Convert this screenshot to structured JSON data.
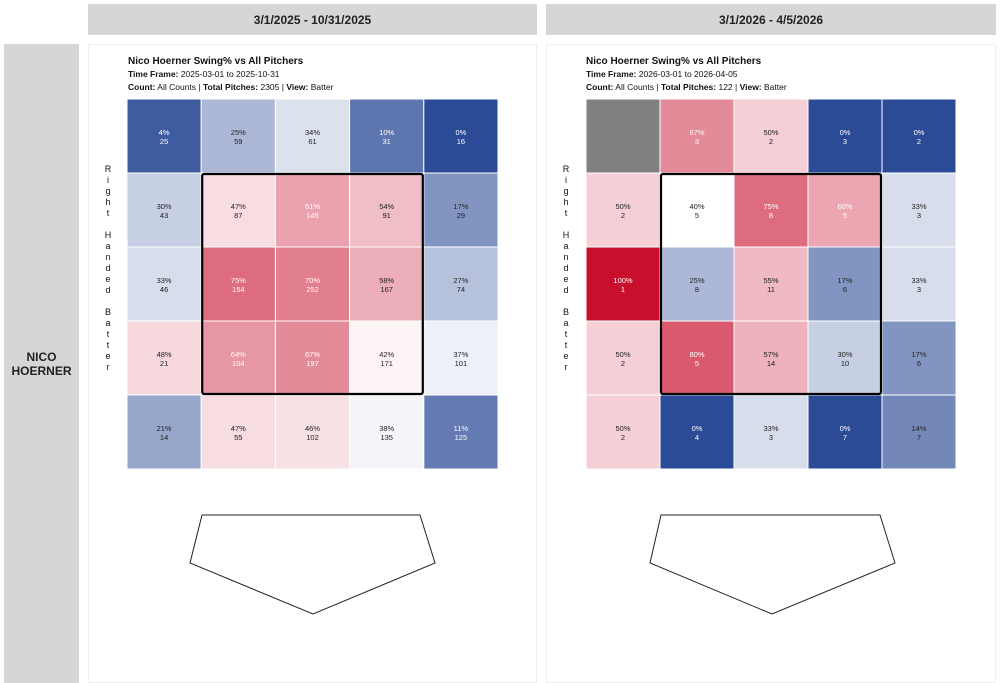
{
  "row_label": "NICO\nHOERNER",
  "panels": [
    {
      "header": "3/1/2025 - 10/31/2025",
      "title": "Nico Hoerner Swing% vs All Pitchers",
      "timeframe_label": "Time Frame:",
      "timeframe_value": "2025-03-01 to 2025-10-31",
      "count_label": "Count:",
      "count_value": "All Counts",
      "total_label": "Total Pitches:",
      "total_value": "2305",
      "view_label": "View:",
      "view_value": "Batter",
      "side_label": "Right Handed Batter"
    },
    {
      "header": "3/1/2026 - 4/5/2026",
      "title": "Nico Hoerner Swing% vs All Pitchers",
      "timeframe_label": "Time Frame:",
      "timeframe_value": "2026-03-01 to 2026-04-05",
      "count_label": "Count:",
      "count_value": "All Counts",
      "total_label": "Total Pitches:",
      "total_value": "122",
      "view_label": "View:",
      "view_value": "Batter",
      "side_label": "Right Handed Batter"
    }
  ],
  "colors": {
    "high": "#c8102e",
    "low": "#2c4b96",
    "mid": "#ffffff",
    "nodata": "#808080"
  },
  "chart_data": [
    {
      "type": "heatmap",
      "title": "Nico Hoerner Swing% vs All Pitchers",
      "rows": 5,
      "cols": 5,
      "strike_zone": "inner 3x3",
      "cells": [
        [
          {
            "pct": 4,
            "n": 25
          },
          {
            "pct": 25,
            "n": 59
          },
          {
            "pct": 34,
            "n": 61
          },
          {
            "pct": 10,
            "n": 31
          },
          {
            "pct": 0,
            "n": 16
          }
        ],
        [
          {
            "pct": 30,
            "n": 43
          },
          {
            "pct": 47,
            "n": 87
          },
          {
            "pct": 61,
            "n": 145
          },
          {
            "pct": 54,
            "n": 91
          },
          {
            "pct": 17,
            "n": 29
          }
        ],
        [
          {
            "pct": 33,
            "n": 46
          },
          {
            "pct": 75,
            "n": 154
          },
          {
            "pct": 70,
            "n": 252
          },
          {
            "pct": 58,
            "n": 167
          },
          {
            "pct": 27,
            "n": 74
          }
        ],
        [
          {
            "pct": 48,
            "n": 21
          },
          {
            "pct": 64,
            "n": 104
          },
          {
            "pct": 67,
            "n": 197
          },
          {
            "pct": 42,
            "n": 171
          },
          {
            "pct": 37,
            "n": 101
          }
        ],
        [
          {
            "pct": 21,
            "n": 14
          },
          {
            "pct": 47,
            "n": 55
          },
          {
            "pct": 46,
            "n": 102
          },
          {
            "pct": 38,
            "n": 135
          },
          {
            "pct": 11,
            "n": 125
          }
        ]
      ]
    },
    {
      "type": "heatmap",
      "title": "Nico Hoerner Swing% vs All Pitchers",
      "rows": 5,
      "cols": 5,
      "strike_zone": "inner 3x3",
      "cells": [
        [
          {
            "pct": null,
            "n": null
          },
          {
            "pct": 67,
            "n": 3
          },
          {
            "pct": 50,
            "n": 2
          },
          {
            "pct": 0,
            "n": 3
          },
          {
            "pct": 0,
            "n": 2
          }
        ],
        [
          {
            "pct": 50,
            "n": 2
          },
          {
            "pct": 40,
            "n": 5
          },
          {
            "pct": 75,
            "n": 8
          },
          {
            "pct": 60,
            "n": 5
          },
          {
            "pct": 33,
            "n": 3
          }
        ],
        [
          {
            "pct": 100,
            "n": 1
          },
          {
            "pct": 25,
            "n": 8
          },
          {
            "pct": 55,
            "n": 11
          },
          {
            "pct": 17,
            "n": 6
          },
          {
            "pct": 33,
            "n": 3
          }
        ],
        [
          {
            "pct": 50,
            "n": 2
          },
          {
            "pct": 80,
            "n": 5
          },
          {
            "pct": 57,
            "n": 14
          },
          {
            "pct": 30,
            "n": 10
          },
          {
            "pct": 17,
            "n": 6
          }
        ],
        [
          {
            "pct": 50,
            "n": 2
          },
          {
            "pct": 0,
            "n": 4
          },
          {
            "pct": 33,
            "n": 3
          },
          {
            "pct": 0,
            "n": 7
          },
          {
            "pct": 14,
            "n": 7
          }
        ]
      ]
    }
  ]
}
